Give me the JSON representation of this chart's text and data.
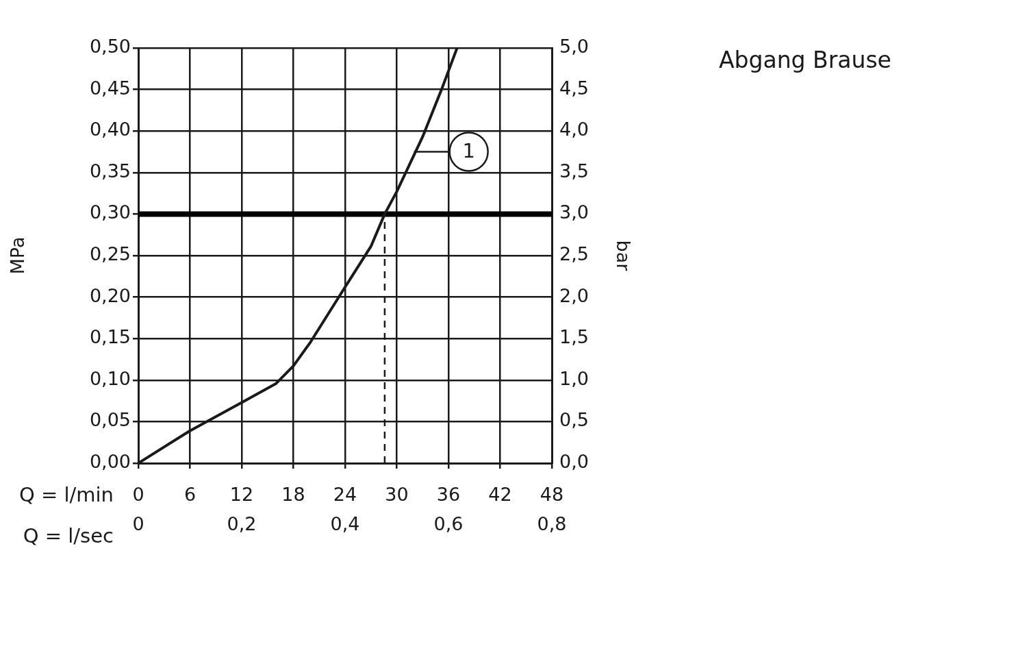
{
  "chart_data": {
    "type": "line",
    "title": "Abgang Brause",
    "xlabel": "Q = l/min",
    "x2label": "Q = l/sec",
    "ylabel": "MPa",
    "y2label": "bar",
    "series": [
      {
        "color": "#1a1a1a",
        "x": [
          0,
          6,
          12,
          16,
          18,
          20,
          24,
          27,
          28.6,
          30,
          33,
          35.2,
          37
        ],
        "values": [
          0,
          0.039,
          0.073,
          0.096,
          0.117,
          0.146,
          0.212,
          0.261,
          0.3,
          0.327,
          0.393,
          0.45,
          0.5
        ]
      }
    ],
    "xlim": [
      0,
      48
    ],
    "xticks": [
      0,
      6,
      12,
      18,
      24,
      30,
      36,
      42,
      48
    ],
    "x2lim": [
      0,
      0.8
    ],
    "x2ticks": [
      {
        "value": 0,
        "label": "0"
      },
      {
        "value": 0.2,
        "label": "0,2"
      },
      {
        "value": 0.4,
        "label": "0,4"
      },
      {
        "value": 0.6,
        "label": "0,6"
      },
      {
        "value": 0.8,
        "label": "0,8"
      }
    ],
    "ylim": [
      0,
      0.5
    ],
    "yticks": [
      {
        "value": 0,
        "label": "0,00"
      },
      {
        "value": 0.05,
        "label": "0,05"
      },
      {
        "value": 0.1,
        "label": "0,10"
      },
      {
        "value": 0.15,
        "label": "0,15"
      },
      {
        "value": 0.2,
        "label": "0,20"
      },
      {
        "value": 0.25,
        "label": "0,25"
      },
      {
        "value": 0.3,
        "label": "0,30"
      },
      {
        "value": 0.35,
        "label": "0,35"
      },
      {
        "value": 0.4,
        "label": "0,40"
      },
      {
        "value": 0.45,
        "label": "0,45"
      },
      {
        "value": 0.5,
        "label": "0,50"
      }
    ],
    "y2lim": [
      0,
      5
    ],
    "y2ticks": [
      {
        "value": 0,
        "label": "0,0"
      },
      {
        "value": 0.5,
        "label": "0,5"
      },
      {
        "value": 1,
        "label": "1,0"
      },
      {
        "value": 1.5,
        "label": "1,5"
      },
      {
        "value": 2,
        "label": "2,0"
      },
      {
        "value": 2.5,
        "label": "2,5"
      },
      {
        "value": 3,
        "label": "3,0"
      },
      {
        "value": 3.5,
        "label": "3,5"
      },
      {
        "value": 4,
        "label": "4,0"
      },
      {
        "value": 4.5,
        "label": "4,5"
      },
      {
        "value": 5,
        "label": "5,0"
      }
    ],
    "ref_lines": [
      {
        "axis": "y",
        "value": 0.3,
        "color": "#000000"
      },
      {
        "axis": "x",
        "value": 28.6,
        "color": "#1a1a1a",
        "line_style": "dashed"
      }
    ],
    "annotations": [
      {
        "text": "1",
        "x": 32,
        "y": 0.375
      }
    ],
    "grid": true,
    "legend": false,
    "marker": "none",
    "line_style": "solid"
  }
}
